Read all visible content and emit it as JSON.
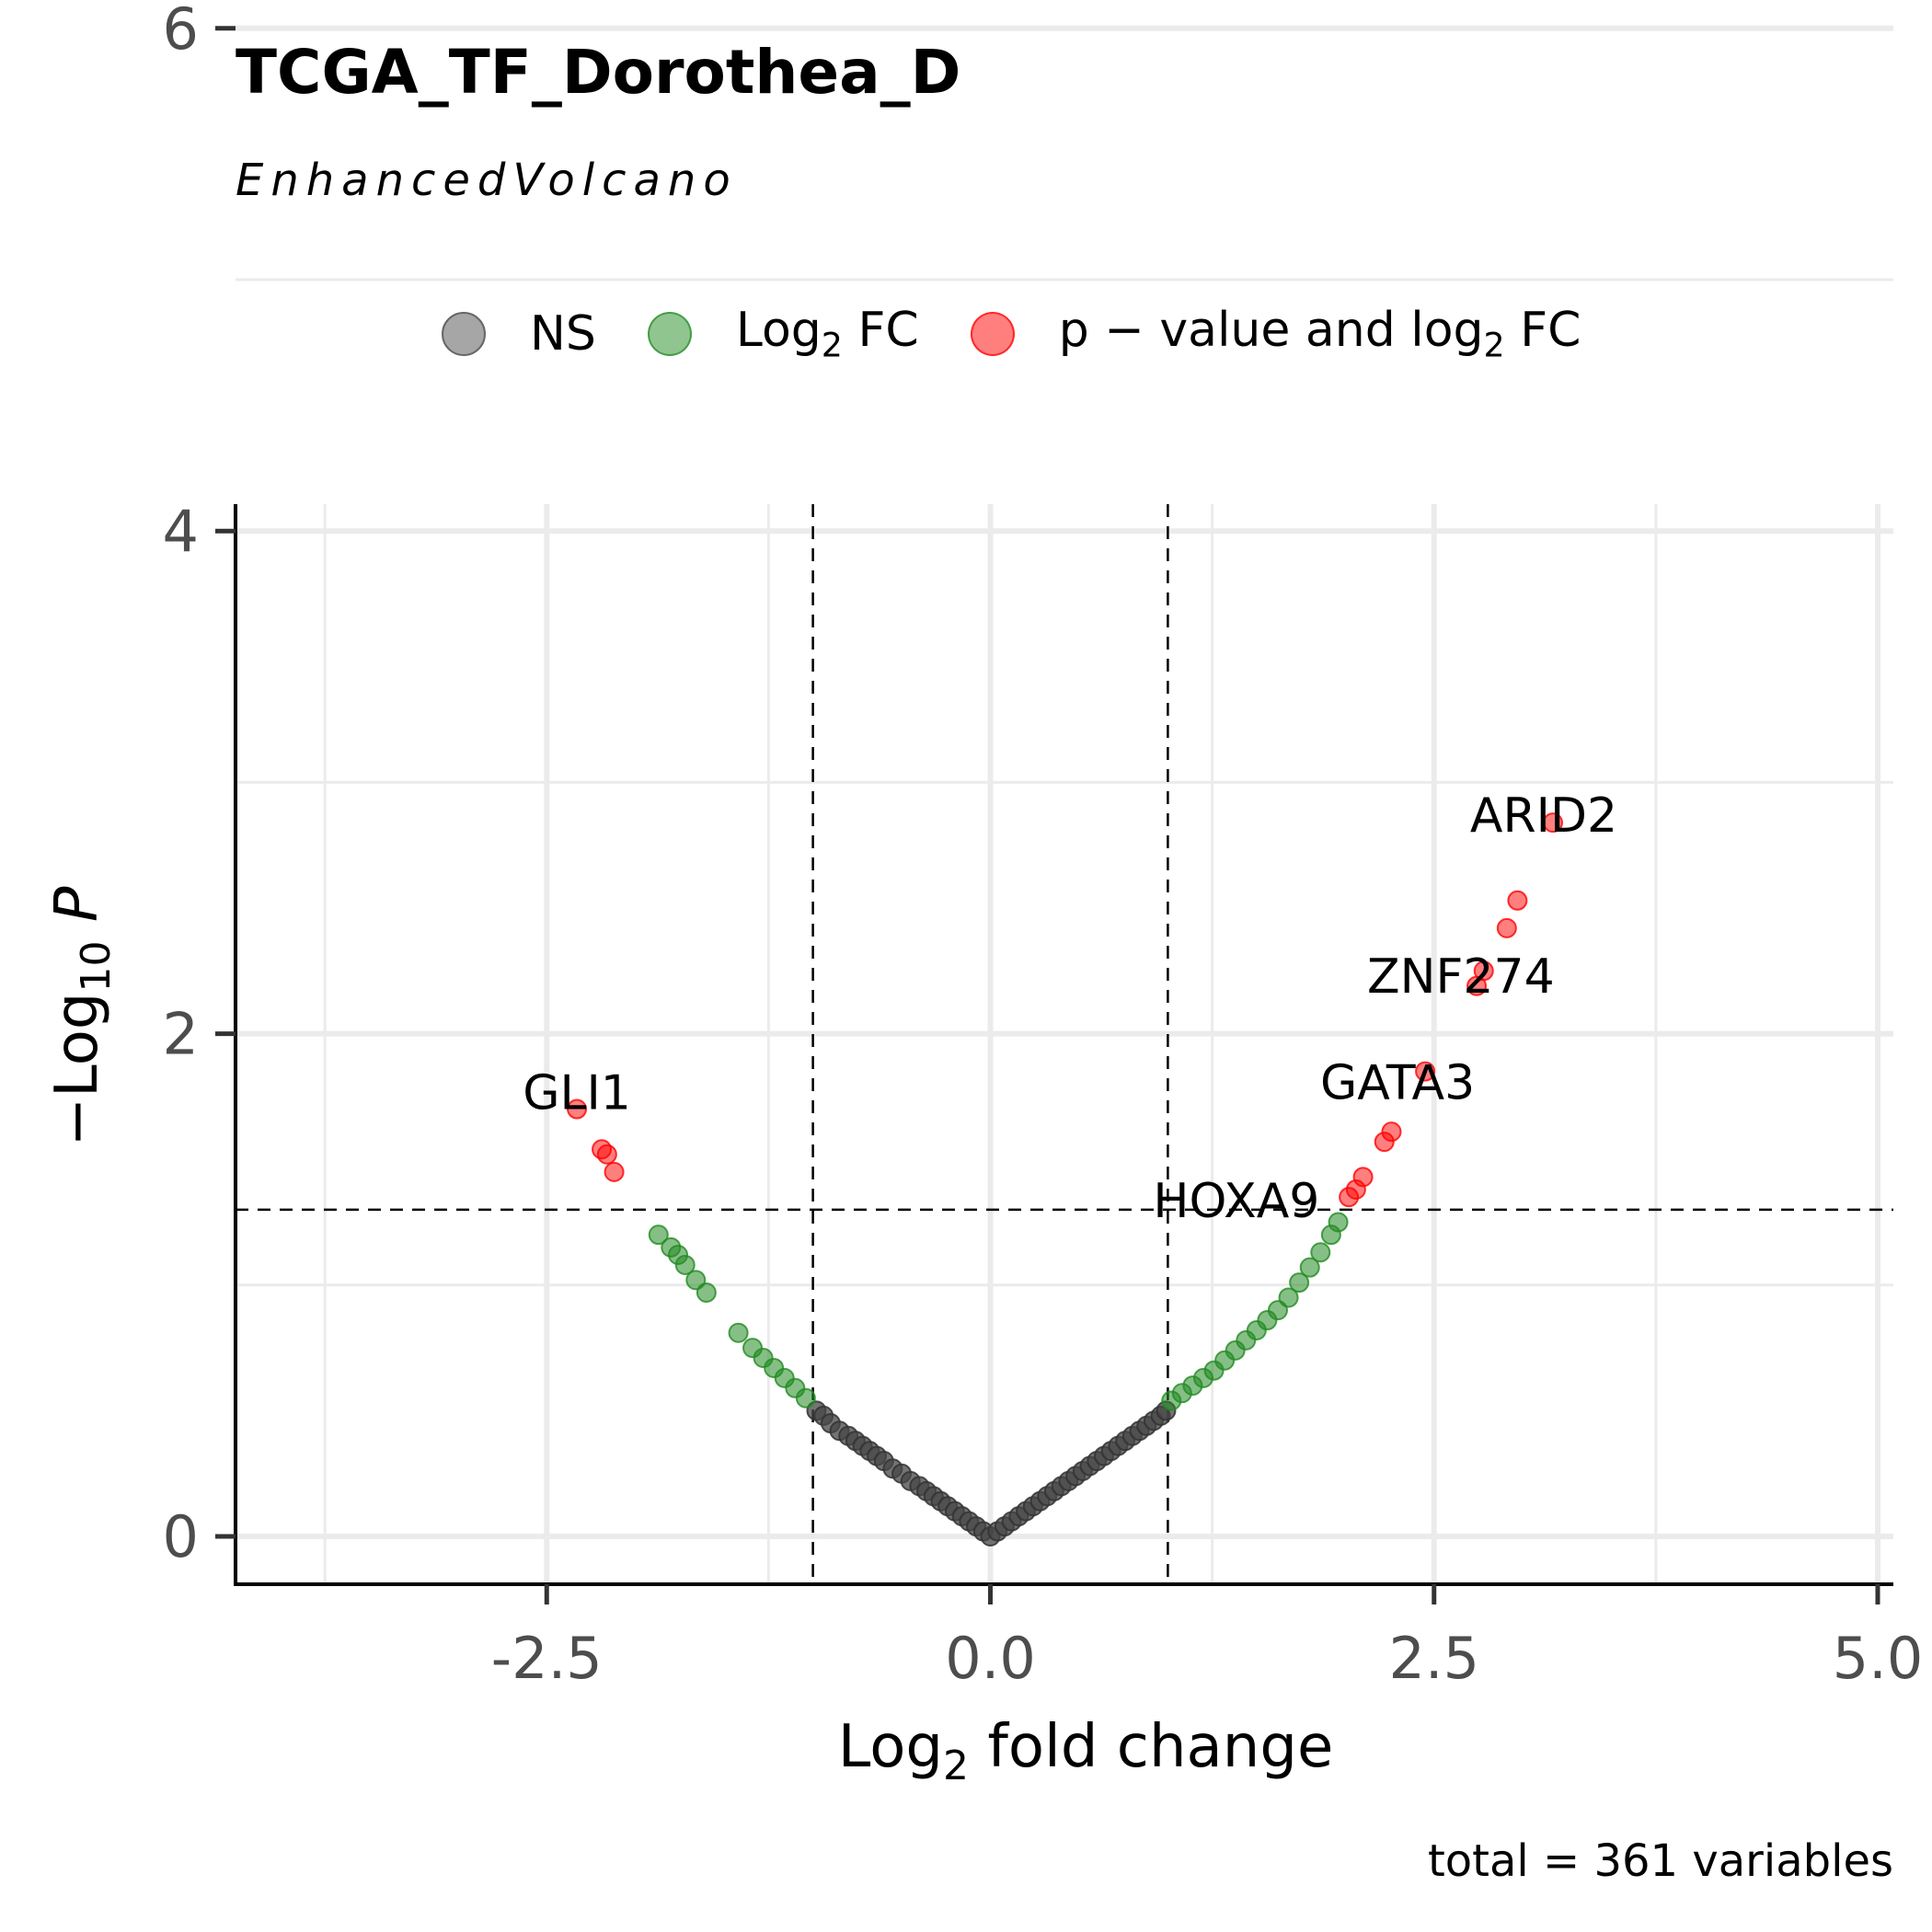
{
  "title": "TCGA_TF_Dorothea_D",
  "subtitle": "EnhancedVolcano",
  "caption": "total = 361 variables",
  "legend": [
    {
      "label": "NS",
      "color": "#808080"
    },
    {
      "label": "Log",
      "sub": "2",
      "tail": " FC",
      "color": "#228B22"
    },
    {
      "label": "p − value and log",
      "sub": "2",
      "tail": " FC",
      "color": "#FF0000"
    }
  ],
  "chart_data": {
    "type": "scatter",
    "xlabel": "Log₂ fold change",
    "ylabel": "−Log₁₀ P",
    "xlim": [
      -4.25,
      5.0
    ],
    "ylim": [
      -0.37,
      8.2
    ],
    "xticks": [
      "-2.5",
      "0.0",
      "2.5",
      "5.0"
    ],
    "yticks": [
      "0",
      "2",
      "4",
      "6",
      "8"
    ],
    "fc_cutoff": [
      -1,
      1
    ],
    "p_cutoff": 1.3,
    "series": [
      {
        "name": "NS",
        "color": "#808080",
        "points": [
          [
            -0.98,
            0.5
          ],
          [
            -0.94,
            0.48
          ],
          [
            -0.9,
            0.45
          ],
          [
            -0.85,
            0.42
          ],
          [
            -0.8,
            0.4
          ],
          [
            -0.76,
            0.38
          ],
          [
            -0.72,
            0.36
          ],
          [
            -0.68,
            0.34
          ],
          [
            -0.64,
            0.32
          ],
          [
            -0.6,
            0.3
          ],
          [
            -0.55,
            0.27
          ],
          [
            -0.5,
            0.25
          ],
          [
            -0.45,
            0.22
          ],
          [
            -0.4,
            0.2
          ],
          [
            -0.36,
            0.18
          ],
          [
            -0.32,
            0.16
          ],
          [
            -0.28,
            0.14
          ],
          [
            -0.24,
            0.12
          ],
          [
            -0.2,
            0.1
          ],
          [
            -0.16,
            0.08
          ],
          [
            -0.12,
            0.06
          ],
          [
            -0.08,
            0.04
          ],
          [
            -0.04,
            0.02
          ],
          [
            0.0,
            0.0
          ],
          [
            0.04,
            0.02
          ],
          [
            0.08,
            0.04
          ],
          [
            0.12,
            0.06
          ],
          [
            0.16,
            0.08
          ],
          [
            0.2,
            0.1
          ],
          [
            0.24,
            0.12
          ],
          [
            0.28,
            0.14
          ],
          [
            0.32,
            0.16
          ],
          [
            0.36,
            0.18
          ],
          [
            0.4,
            0.2
          ],
          [
            0.44,
            0.22
          ],
          [
            0.48,
            0.24
          ],
          [
            0.52,
            0.26
          ],
          [
            0.56,
            0.28
          ],
          [
            0.6,
            0.3
          ],
          [
            0.64,
            0.32
          ],
          [
            0.68,
            0.34
          ],
          [
            0.72,
            0.36
          ],
          [
            0.76,
            0.38
          ],
          [
            0.8,
            0.4
          ],
          [
            0.84,
            0.42
          ],
          [
            0.88,
            0.44
          ],
          [
            0.92,
            0.46
          ],
          [
            0.96,
            0.48
          ],
          [
            0.99,
            0.5
          ]
        ]
      },
      {
        "name": "Log₂ FC",
        "color": "#228B22",
        "points": [
          [
            -1.87,
            1.2
          ],
          [
            -1.8,
            1.15
          ],
          [
            -1.76,
            1.12
          ],
          [
            -1.72,
            1.08
          ],
          [
            -1.66,
            1.02
          ],
          [
            -1.6,
            0.97
          ],
          [
            -1.42,
            0.81
          ],
          [
            -1.34,
            0.75
          ],
          [
            -1.28,
            0.71
          ],
          [
            -1.22,
            0.67
          ],
          [
            -1.16,
            0.63
          ],
          [
            -1.1,
            0.59
          ],
          [
            -1.04,
            0.55
          ],
          [
            1.02,
            0.54
          ],
          [
            1.08,
            0.57
          ],
          [
            1.14,
            0.6
          ],
          [
            1.2,
            0.63
          ],
          [
            1.26,
            0.66
          ],
          [
            1.32,
            0.7
          ],
          [
            1.38,
            0.74
          ],
          [
            1.44,
            0.78
          ],
          [
            1.5,
            0.82
          ],
          [
            1.56,
            0.86
          ],
          [
            1.62,
            0.9
          ],
          [
            1.68,
            0.95
          ],
          [
            1.74,
            1.01
          ],
          [
            1.8,
            1.07
          ],
          [
            1.86,
            1.13
          ],
          [
            1.92,
            1.2
          ],
          [
            1.96,
            1.25
          ]
        ]
      },
      {
        "name": "p − value and log₂ FC",
        "color": "#FF0000",
        "points": [
          [
            -2.33,
            1.7
          ],
          [
            -2.19,
            1.54
          ],
          [
            -2.16,
            1.52
          ],
          [
            -2.12,
            1.45
          ],
          [
            2.02,
            1.35
          ],
          [
            2.06,
            1.38
          ],
          [
            2.1,
            1.43
          ],
          [
            2.22,
            1.57
          ],
          [
            2.26,
            1.61
          ],
          [
            2.45,
            1.85
          ],
          [
            2.74,
            2.19
          ],
          [
            2.78,
            2.25
          ],
          [
            2.91,
            2.42
          ],
          [
            2.97,
            2.53
          ],
          [
            3.17,
            2.84
          ]
        ]
      }
    ],
    "labels": [
      {
        "text": "GLI1",
        "x": -2.33,
        "y": 1.7
      },
      {
        "text": "ARID2",
        "x": 3.17,
        "y": 2.84
      },
      {
        "text": "ZNF274",
        "x": 2.91,
        "y": 2.42
      },
      {
        "text": "GATA3",
        "x": 2.45,
        "y": 1.85
      },
      {
        "text": "HOXA9",
        "x": 2.06,
        "y": 1.38
      }
    ]
  }
}
